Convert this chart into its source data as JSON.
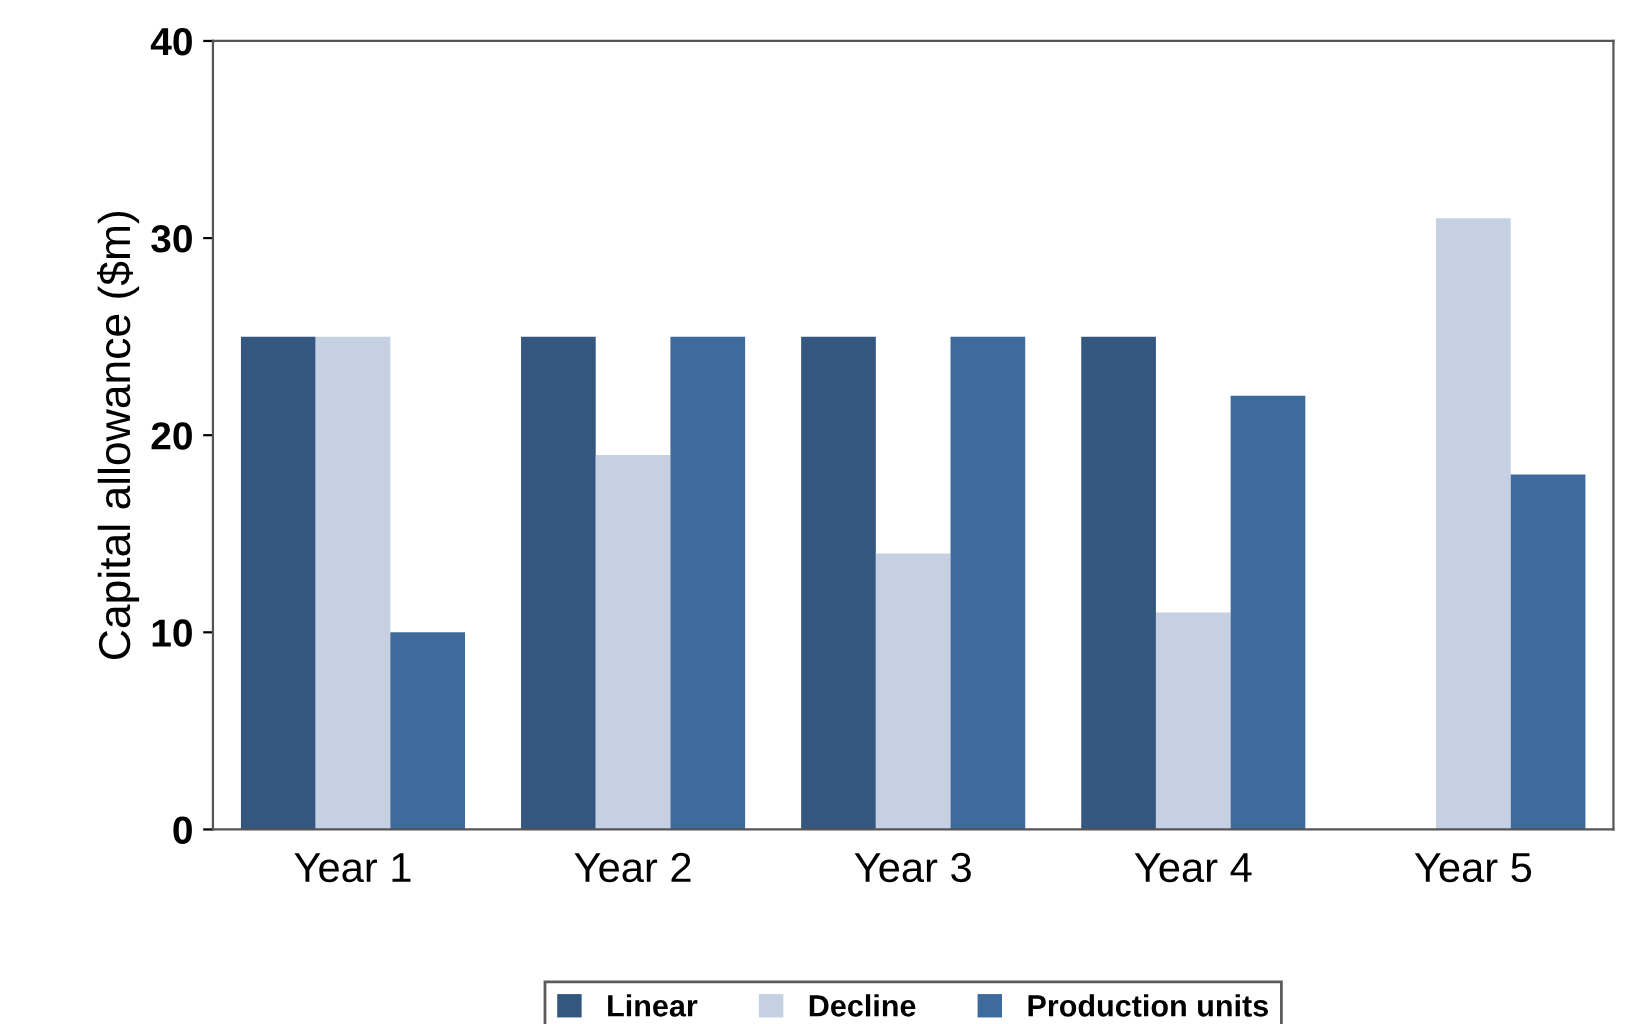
{
  "chart_data": {
    "type": "bar",
    "ylabel": "Capital allowance ($m)",
    "categories": [
      "Year 1",
      "Year 2",
      "Year 3",
      "Year 4",
      "Year 5"
    ],
    "series": [
      {
        "name": "Linear",
        "color": "#34577f",
        "values": [
          25,
          25,
          25,
          25,
          null
        ]
      },
      {
        "name": "Decline",
        "color": "#c5d0e2",
        "values": [
          25,
          19,
          14,
          11,
          31
        ]
      },
      {
        "name": "Production units",
        "color": "#3f6a9c",
        "values": [
          10,
          25,
          25,
          22,
          18
        ]
      }
    ],
    "ylim": [
      0,
      40
    ],
    "yticks": [
      0,
      10,
      20,
      30,
      40
    ],
    "grid": false,
    "legend": "bottom"
  }
}
